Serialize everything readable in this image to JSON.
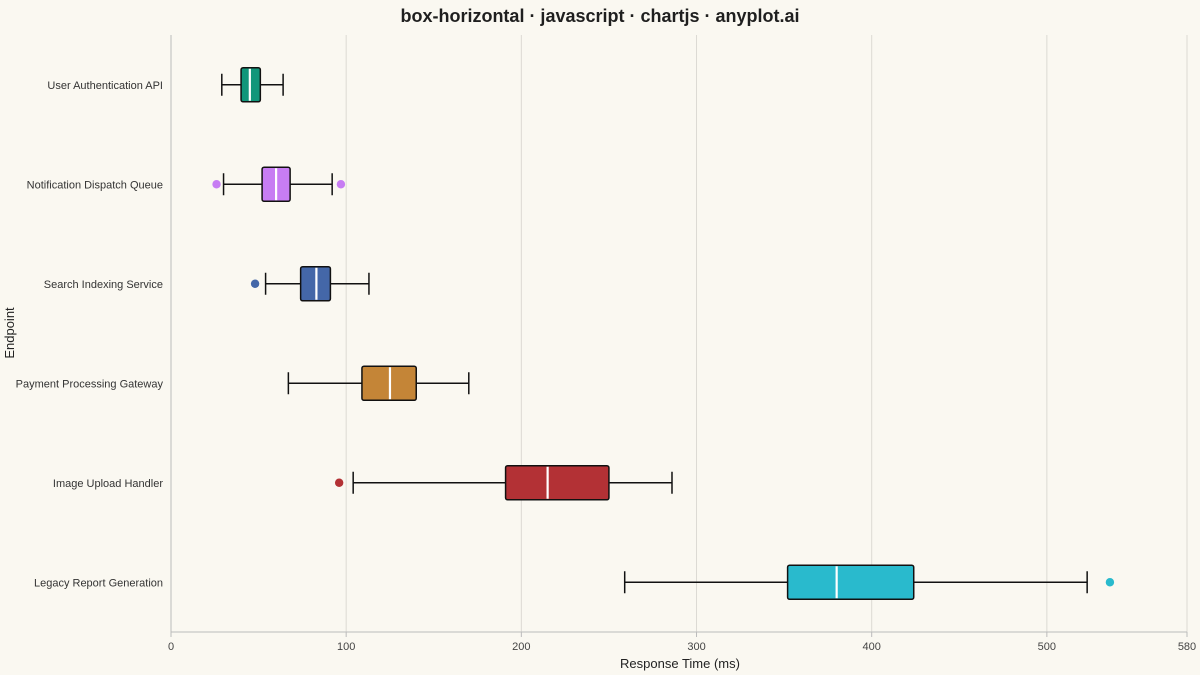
{
  "chart_data": {
    "type": "box-horizontal",
    "title": "box-horizontal · javascript · chartjs · anyplot.ai",
    "xlabel": "Response Time (ms)",
    "ylabel": "Endpoint",
    "xlim": [
      0,
      580
    ],
    "x_ticks": [
      0,
      100,
      200,
      300,
      400,
      500,
      580
    ],
    "grid": true,
    "categories": [
      "User Authentication API",
      "Notification Dispatch Queue",
      "Search Indexing Service",
      "Payment Processing Gateway",
      "Image Upload Handler",
      "Legacy Report Generation"
    ],
    "series": [
      {
        "category": "User Authentication API",
        "color": "#11967A",
        "whisker_low": 29,
        "q1": 40,
        "median": 45,
        "q3": 51,
        "whisker_high": 64,
        "outliers": []
      },
      {
        "category": "Notification Dispatch Queue",
        "color": "#C77DF3",
        "whisker_low": 30,
        "q1": 52,
        "median": 60,
        "q3": 68,
        "whisker_high": 92,
        "outliers": [
          26,
          97
        ]
      },
      {
        "category": "Search Indexing Service",
        "color": "#4467A8",
        "whisker_low": 54,
        "q1": 74,
        "median": 83,
        "q3": 91,
        "whisker_high": 113,
        "outliers": [
          48
        ]
      },
      {
        "category": "Payment Processing Gateway",
        "color": "#C48537",
        "whisker_low": 67,
        "q1": 109,
        "median": 125,
        "q3": 140,
        "whisker_high": 170,
        "outliers": []
      },
      {
        "category": "Image Upload Handler",
        "color": "#B33135",
        "whisker_low": 104,
        "q1": 191,
        "median": 215,
        "q3": 250,
        "whisker_high": 286,
        "outliers": [
          96
        ]
      },
      {
        "category": "Legacy Report Generation",
        "color": "#29BACD",
        "whisker_low": 259,
        "q1": 352,
        "median": 380,
        "q3": 424,
        "whisker_high": 523,
        "outliers": [
          536
        ]
      }
    ]
  }
}
